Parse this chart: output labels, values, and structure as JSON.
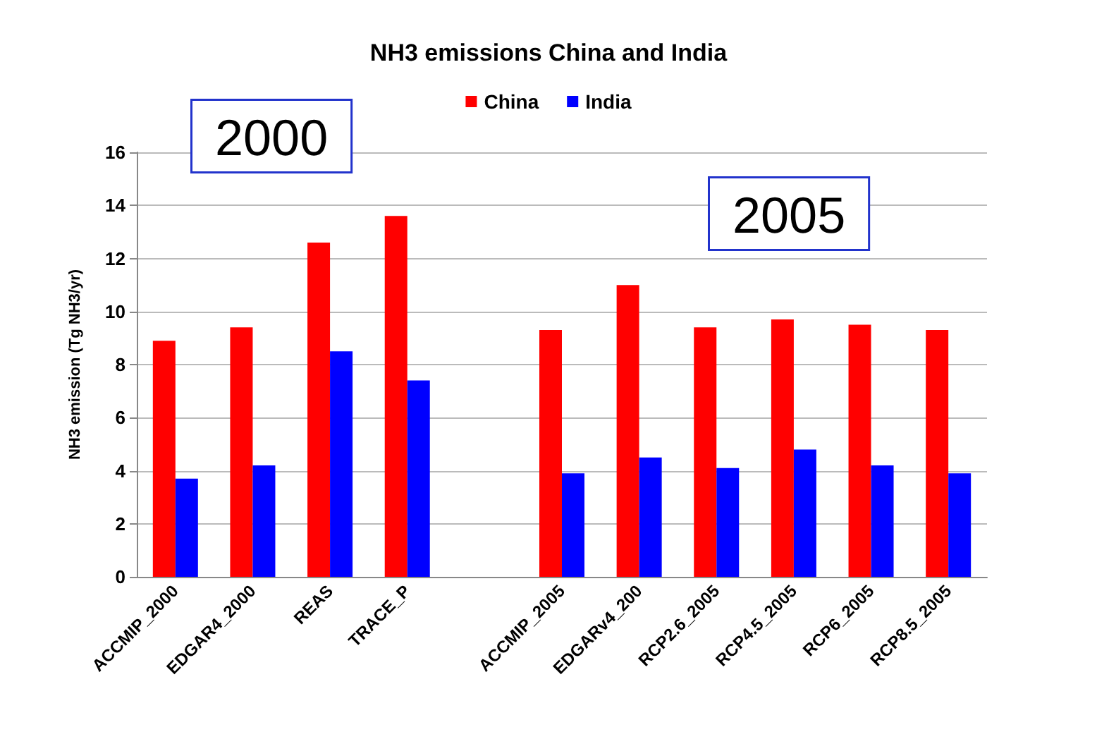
{
  "chart_data": {
    "type": "bar",
    "title": "NH3 emissions China and India",
    "ylabel": "NH3 emission (Tg NH3/yr)",
    "categories": [
      "ACCMIP_2000",
      "EDGAR4_2000",
      "REAS",
      "TRACE_P",
      null,
      "ACCMIP_2005",
      "EDGARv4_200",
      "RCP2.6_2005",
      "RCP4.5_2005",
      "RCP6_2005",
      "RCP8.5_2005"
    ],
    "series": [
      {
        "name": "China",
        "color": "#ff0000",
        "values": [
          8.9,
          9.4,
          12.6,
          13.6,
          null,
          9.3,
          11.0,
          9.4,
          9.7,
          9.5,
          9.3
        ]
      },
      {
        "name": "India",
        "color": "#0000ff",
        "values": [
          3.7,
          4.2,
          8.5,
          7.4,
          null,
          3.9,
          4.5,
          4.1,
          4.8,
          4.2,
          3.9
        ]
      }
    ],
    "ylim": [
      0,
      16
    ],
    "yticks": [
      0,
      2,
      4,
      6,
      8,
      10,
      12,
      14,
      16
    ],
    "grid": "y",
    "legend": "top",
    "annotations": [
      "2000",
      "2005"
    ]
  }
}
